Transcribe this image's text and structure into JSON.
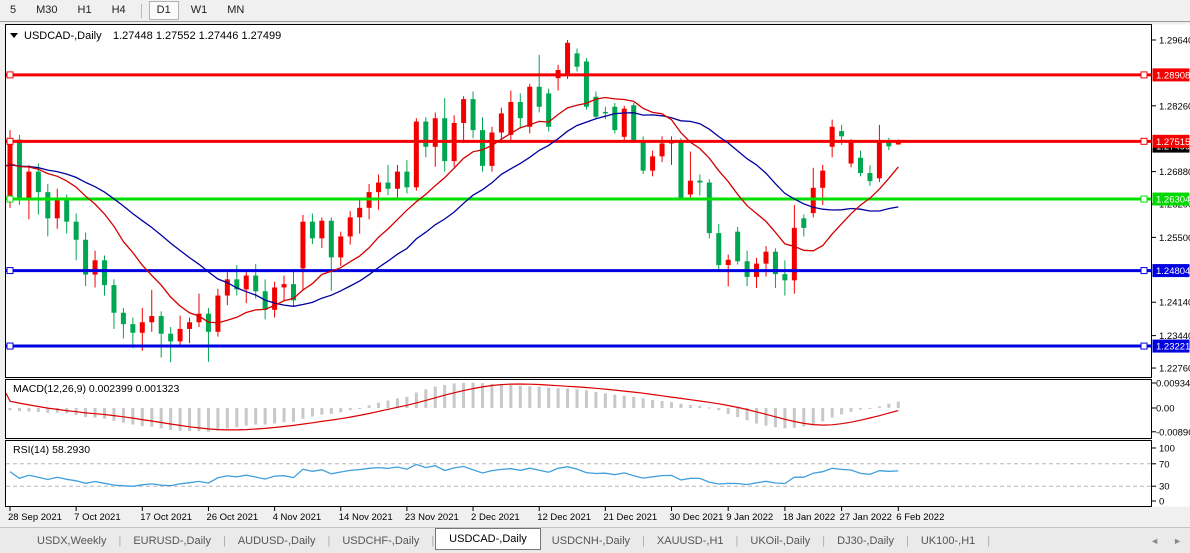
{
  "toolbar": {
    "buttons": [
      "5",
      "M30",
      "H1",
      "H4",
      "D1",
      "W1",
      "MN"
    ],
    "active": "D1"
  },
  "legend": {
    "symbol": "USDCAD-,Daily",
    "ohlc": "1.27448 1.27552 1.27446 1.27499"
  },
  "macd_panel": {
    "label": "MACD(12,26,9) 0.002399 0.001323",
    "axis": [
      {
        "t": "0.009345",
        "v": 0.009345
      },
      {
        "t": "0.00",
        "v": 0
      },
      {
        "t": "-0.00890",
        "v": -0.0089
      }
    ]
  },
  "rsi_panel": {
    "label": "RSI(14) 58.2930",
    "axis": [
      {
        "t": "100",
        "v": 100
      },
      {
        "t": "70",
        "v": 70
      },
      {
        "t": "30",
        "v": 30
      },
      {
        "t": "0",
        "v": 0
      }
    ],
    "levels": [
      70,
      30
    ]
  },
  "price_axis": {
    "ticks": [
      {
        "t": "1.29640",
        "v": 1.2964
      },
      {
        "t": "1.28260",
        "v": 1.2826
      },
      {
        "t": "1.26880",
        "v": 1.2688
      },
      {
        "t": "1.26200",
        "v": 1.262
      },
      {
        "t": "1.25500",
        "v": 1.255
      },
      {
        "t": "1.24140",
        "v": 1.2414
      },
      {
        "t": "1.23440",
        "v": 1.2344
      },
      {
        "t": "1.22760",
        "v": 1.2276
      }
    ],
    "badges": [
      {
        "t": "1.27499",
        "v": 1.27499,
        "bg": "#000000",
        "yoff": 4
      },
      {
        "t": "1.28908",
        "v": 1.28908,
        "bg": "#f40000",
        "yoff": 0
      },
      {
        "t": "1.27515",
        "v": 1.27515,
        "bg": "#f40000",
        "yoff": 0
      },
      {
        "t": "1.26304",
        "v": 1.26304,
        "bg": "#00d800",
        "yoff": 0
      },
      {
        "t": "1.24804",
        "v": 1.24804,
        "bg": "#0000e0",
        "yoff": 0
      },
      {
        "t": "1.23221",
        "v": 1.23221,
        "bg": "#0000e0",
        "yoff": 0
      }
    ]
  },
  "date_axis": {
    "ticks": [
      {
        "t": "28 Sep 2021",
        "i": 0
      },
      {
        "t": "7 Oct 2021",
        "i": 7
      },
      {
        "t": "17 Oct 2021",
        "i": 14
      },
      {
        "t": "26 Oct 2021",
        "i": 21
      },
      {
        "t": "4 Nov 2021",
        "i": 28
      },
      {
        "t": "14 Nov 2021",
        "i": 35
      },
      {
        "t": "23 Nov 2021",
        "i": 42
      },
      {
        "t": "2 Dec 2021",
        "i": 49
      },
      {
        "t": "12 Dec 2021",
        "i": 56
      },
      {
        "t": "21 Dec 2021",
        "i": 63
      },
      {
        "t": "30 Dec 2021",
        "i": 70
      },
      {
        "t": "9 Jan 2022",
        "i": 76
      },
      {
        "t": "18 Jan 2022",
        "i": 82
      },
      {
        "t": "27 Jan 2022",
        "i": 88
      },
      {
        "t": "6 Feb 2022",
        "i": 94
      }
    ]
  },
  "tabs": {
    "items": [
      "USDX,Weekly",
      "EURUSD-,Daily",
      "AUDUSD-,Daily",
      "USDCHF-,Daily",
      "USDCAD-,Daily",
      "USDCNH-,Daily",
      "XAUUSD-,H1",
      "UKOil-,Daily",
      "DJ30-,Daily",
      "UK100-,H1"
    ],
    "active": "USDCAD-,Daily",
    "scroll_left": "◄",
    "scroll_right": "►"
  },
  "chart_data": {
    "type": "candlestick",
    "symbol": "USDCAD-",
    "timeframe": "Daily",
    "last_ohlc": {
      "open": 1.27448,
      "high": 1.27552,
      "low": 1.27446,
      "close": 1.27499
    },
    "up_color": "#f20000",
    "down_color": "#00a651",
    "hlines": [
      {
        "price": 1.28908,
        "color": "#f40000"
      },
      {
        "price": 1.27515,
        "color": "#f40000"
      },
      {
        "price": 1.26304,
        "color": "#00e000"
      },
      {
        "price": 1.24804,
        "color": "#0000e0"
      },
      {
        "price": 1.23221,
        "color": "#0000e0"
      }
    ],
    "moving_averages": [
      {
        "period": 12,
        "color": "#d20000"
      },
      {
        "period": 22,
        "color": "#0000a0"
      }
    ],
    "candles": [
      [
        1.263,
        1.2775,
        1.2612,
        1.2755
      ],
      [
        1.2755,
        1.2765,
        1.2618,
        1.2628
      ],
      [
        1.2628,
        1.2702,
        1.2588,
        1.2688
      ],
      [
        1.2688,
        1.2705,
        1.2598,
        1.2645
      ],
      [
        1.2645,
        1.2662,
        1.2552,
        1.259
      ],
      [
        1.259,
        1.2652,
        1.2568,
        1.2632
      ],
      [
        1.2632,
        1.264,
        1.2558,
        1.2583
      ],
      [
        1.2583,
        1.26,
        1.2502,
        1.2545
      ],
      [
        1.2545,
        1.256,
        1.2448,
        1.2472
      ],
      [
        1.2472,
        1.2522,
        1.2445,
        1.2502
      ],
      [
        1.2502,
        1.2512,
        1.2428,
        1.245
      ],
      [
        1.245,
        1.2462,
        1.2358,
        1.2392
      ],
      [
        1.2392,
        1.2402,
        1.2338,
        1.2368
      ],
      [
        1.2368,
        1.2382,
        1.2318,
        1.235
      ],
      [
        1.235,
        1.2402,
        1.2312,
        1.2372
      ],
      [
        1.2372,
        1.244,
        1.2352,
        1.2385
      ],
      [
        1.2385,
        1.2395,
        1.2298,
        1.2348
      ],
      [
        1.2348,
        1.2362,
        1.2288,
        1.2332
      ],
      [
        1.2332,
        1.2386,
        1.2322,
        1.2358
      ],
      [
        1.2358,
        1.2382,
        1.2328,
        1.2372
      ],
      [
        1.2372,
        1.2432,
        1.2362,
        1.239
      ],
      [
        1.239,
        1.2402,
        1.2289,
        1.2352
      ],
      [
        1.2352,
        1.2442,
        1.2342,
        1.2428
      ],
      [
        1.2428,
        1.2477,
        1.2408,
        1.2462
      ],
      [
        1.2462,
        1.2492,
        1.2428,
        1.2441
      ],
      [
        1.2441,
        1.248,
        1.2412,
        1.247
      ],
      [
        1.247,
        1.2494,
        1.2422,
        1.2437
      ],
      [
        1.2437,
        1.2462,
        1.2378,
        1.2398
      ],
      [
        1.2398,
        1.2457,
        1.2382,
        1.2445
      ],
      [
        1.2445,
        1.247,
        1.2418,
        1.2452
      ],
      [
        1.2452,
        1.2478,
        1.2405,
        1.2418
      ],
      [
        1.2485,
        1.2597,
        1.2438,
        1.2583
      ],
      [
        1.2583,
        1.26,
        1.2536,
        1.2548
      ],
      [
        1.2548,
        1.2592,
        1.2528,
        1.2585
      ],
      [
        1.2585,
        1.2592,
        1.2438,
        1.2508
      ],
      [
        1.2508,
        1.2562,
        1.249,
        1.2552
      ],
      [
        1.2552,
        1.2605,
        1.2535,
        1.2592
      ],
      [
        1.2592,
        1.2628,
        1.2558,
        1.2612
      ],
      [
        1.2612,
        1.2662,
        1.2588,
        1.2645
      ],
      [
        1.2645,
        1.2682,
        1.2608,
        1.2665
      ],
      [
        1.2665,
        1.2702,
        1.2638,
        1.2652
      ],
      [
        1.2652,
        1.2702,
        1.2628,
        1.2688
      ],
      [
        1.2688,
        1.2712,
        1.2642,
        1.2655
      ],
      [
        1.2655,
        1.28,
        1.2648,
        1.2793
      ],
      [
        1.2793,
        1.2802,
        1.2718,
        1.274
      ],
      [
        1.274,
        1.2812,
        1.2698,
        1.28
      ],
      [
        1.28,
        1.2842,
        1.2688,
        1.271
      ],
      [
        1.271,
        1.2806,
        1.2698,
        1.279
      ],
      [
        1.279,
        1.2846,
        1.2748,
        1.284
      ],
      [
        1.284,
        1.2856,
        1.2758,
        1.2775
      ],
      [
        1.2775,
        1.2802,
        1.2688,
        1.27
      ],
      [
        1.27,
        1.2782,
        1.2688,
        1.277
      ],
      [
        1.277,
        1.2822,
        1.2748,
        1.281
      ],
      [
        1.2765,
        1.2858,
        1.2752,
        1.2834
      ],
      [
        1.2834,
        1.2852,
        1.2778,
        1.28
      ],
      [
        1.2782,
        1.2872,
        1.2768,
        1.2866
      ],
      [
        1.2866,
        1.2933,
        1.2812,
        1.2824
      ],
      [
        1.2852,
        1.2862,
        1.2772,
        1.2782
      ],
      [
        1.2884,
        1.2912,
        1.2858,
        1.2901
      ],
      [
        1.2891,
        1.2964,
        1.2882,
        1.2958
      ],
      [
        1.2936,
        1.2946,
        1.2898,
        1.2908
      ],
      [
        1.2919,
        1.2926,
        1.2818,
        1.2824
      ],
      [
        1.2845,
        1.2856,
        1.2798,
        1.2803
      ],
      [
        1.2813,
        1.2824,
        1.2798,
        1.281
      ],
      [
        1.2824,
        1.2832,
        1.2768,
        1.2775
      ],
      [
        1.2761,
        1.2826,
        1.2752,
        1.282
      ],
      [
        1.2827,
        1.2832,
        1.2748,
        1.2754
      ],
      [
        1.2754,
        1.2762,
        1.2683,
        1.269
      ],
      [
        1.269,
        1.2732,
        1.2678,
        1.272
      ],
      [
        1.272,
        1.2762,
        1.2708,
        1.2747
      ],
      [
        1.2747,
        1.2762,
        1.2702,
        1.2752
      ],
      [
        1.2752,
        1.2758,
        1.2628,
        1.2633
      ],
      [
        1.264,
        1.273,
        1.2628,
        1.2669
      ],
      [
        1.2669,
        1.2682,
        1.2638,
        1.2665
      ],
      [
        1.2665,
        1.2672,
        1.2548,
        1.2559
      ],
      [
        1.2559,
        1.2578,
        1.2478,
        1.2492
      ],
      [
        1.2492,
        1.2514,
        1.2447,
        1.2503
      ],
      [
        1.2562,
        1.2572,
        1.2493,
        1.25
      ],
      [
        1.25,
        1.2522,
        1.2448,
        1.2467
      ],
      [
        1.2467,
        1.2507,
        1.2444,
        1.2495
      ],
      [
        1.2495,
        1.2532,
        1.2468,
        1.252
      ],
      [
        1.252,
        1.2527,
        1.2444,
        1.2473
      ],
      [
        1.2473,
        1.2502,
        1.2428,
        1.246
      ],
      [
        1.246,
        1.2618,
        1.2432,
        1.257
      ],
      [
        1.259,
        1.2598,
        1.2552,
        1.257
      ],
      [
        1.2601,
        1.2696,
        1.2592,
        1.2654
      ],
      [
        1.2654,
        1.2702,
        1.2618,
        1.269
      ],
      [
        1.274,
        1.2797,
        1.2718,
        1.2782
      ],
      [
        1.2773,
        1.2786,
        1.2744,
        1.2762
      ],
      [
        1.2705,
        1.2756,
        1.2697,
        1.2751
      ],
      [
        1.2717,
        1.2732,
        1.2678,
        1.2685
      ],
      [
        1.2685,
        1.2701,
        1.2658,
        1.2668
      ],
      [
        1.2674,
        1.2786,
        1.2666,
        1.2751
      ],
      [
        1.2751,
        1.2759,
        1.2733,
        1.2741
      ],
      [
        1.27448,
        1.27552,
        1.27446,
        1.27499
      ]
    ],
    "macd": {
      "fast": 12,
      "slow": 26,
      "signal": 9,
      "last": 0.002399,
      "signal_last": 0.001323,
      "hist_color": "#c8c8c8",
      "signal_color": "#dc0000",
      "values": [
        -0.0008,
        -0.0012,
        -0.0013,
        -0.0015,
        -0.0018,
        -0.0018,
        -0.002,
        -0.0026,
        -0.0034,
        -0.0036,
        -0.004,
        -0.0048,
        -0.0055,
        -0.0062,
        -0.0068,
        -0.007,
        -0.0076,
        -0.0082,
        -0.0085,
        -0.0086,
        -0.0087,
        -0.0089,
        -0.0084,
        -0.0077,
        -0.0072,
        -0.0066,
        -0.0062,
        -0.0062,
        -0.0058,
        -0.0053,
        -0.0052,
        -0.004,
        -0.0032,
        -0.0025,
        -0.0022,
        -0.0016,
        -0.0008,
        0.0,
        0.001,
        0.002,
        0.0028,
        0.0036,
        0.0042,
        0.0058,
        0.007,
        0.008,
        0.0086,
        0.0092,
        0.0094,
        0.0095,
        0.0093,
        0.009,
        0.0088,
        0.0086,
        0.0083,
        0.0081,
        0.008,
        0.0076,
        0.0074,
        0.0073,
        0.007,
        0.0066,
        0.006,
        0.0055,
        0.005,
        0.0046,
        0.0042,
        0.0036,
        0.003,
        0.0026,
        0.0022,
        0.0016,
        0.0011,
        0.0008,
        0.0002,
        -0.0008,
        -0.0022,
        -0.0034,
        -0.0046,
        -0.0058,
        -0.0066,
        -0.0072,
        -0.0076,
        -0.0074,
        -0.007,
        -0.0062,
        -0.005,
        -0.0036,
        -0.0024,
        -0.0014,
        -0.0006,
        -0.0002,
        0.0006,
        0.0016,
        0.0024
      ]
    },
    "rsi": {
      "period": 14,
      "last": 58.293,
      "color": "#409fdc"
    },
    "y_axis": {
      "top_price": 1.2964,
      "bottom_price": 1.2257
    },
    "macd_axis": {
      "min": -0.0089,
      "max": 0.009345
    },
    "rsi_axis": [
      0,
      100
    ],
    "legend_position": "top-left",
    "grid": false
  }
}
